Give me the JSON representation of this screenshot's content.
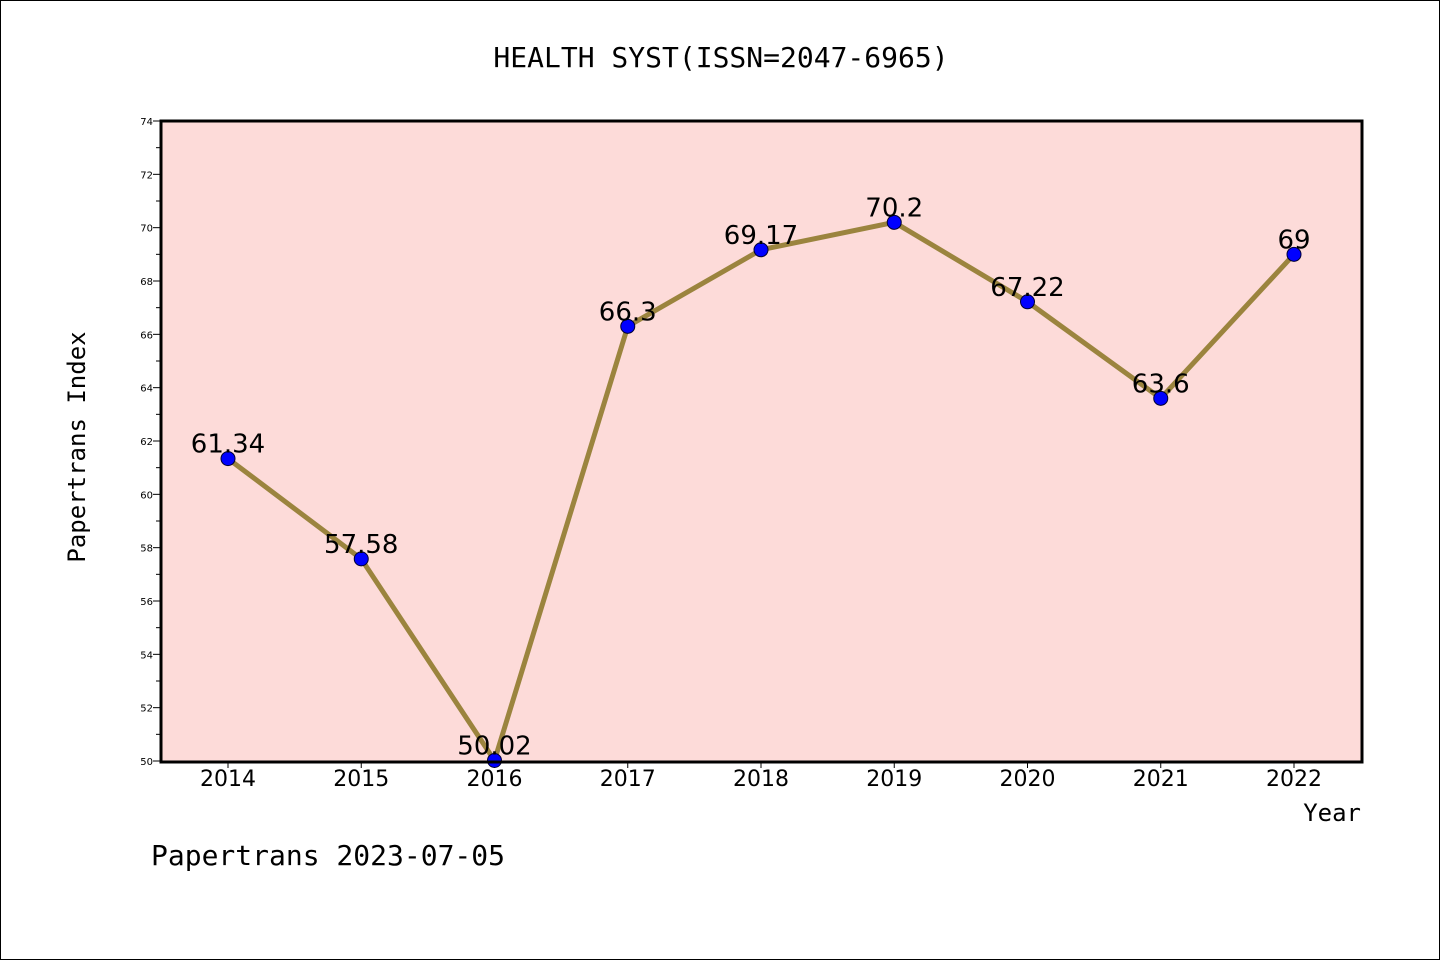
{
  "chart_data": {
    "type": "line",
    "title": "HEALTH SYST(ISSN=2047-6965)",
    "xlabel": "Year",
    "ylabel": "Papertrans Index",
    "categories": [
      "2014",
      "2015",
      "2016",
      "2017",
      "2018",
      "2019",
      "2020",
      "2021",
      "2022"
    ],
    "values": [
      61.34,
      57.58,
      50.02,
      66.3,
      69.17,
      70.2,
      67.22,
      63.6,
      69
    ],
    "data_labels": [
      "61.34",
      "57.58",
      "50.02",
      "66.3",
      "69.17",
      "70.2",
      "67.22",
      "63.6",
      "69"
    ],
    "ylim": [
      50,
      74
    ],
    "yticks": [
      "50",
      "52",
      "54",
      "56",
      "58",
      "60",
      "62",
      "64",
      "66",
      "68",
      "70",
      "72",
      "74"
    ],
    "grid": false,
    "colors": {
      "plot_background": "#fddbd9",
      "line": "#9b843e",
      "marker": "#0000ff"
    }
  },
  "footer": "Papertrans 2023-07-05"
}
